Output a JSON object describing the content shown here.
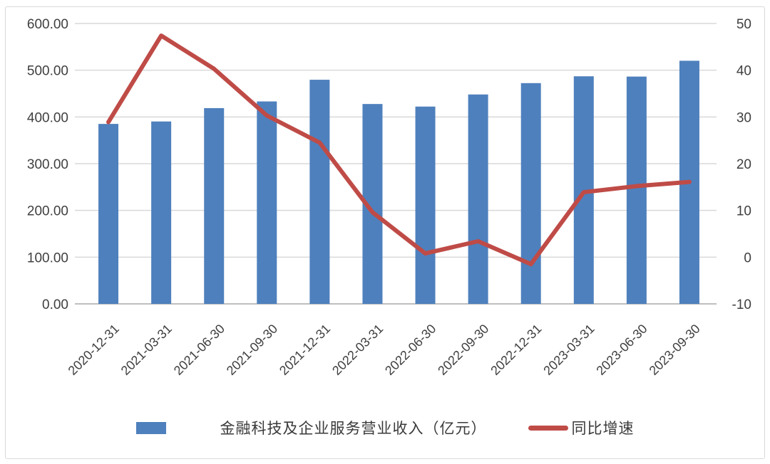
{
  "chart_data": {
    "type": "combo",
    "subtype": "bar+line",
    "title": "",
    "categories": [
      "2020-12-31",
      "2021-03-31",
      "2021-06-30",
      "2021-09-30",
      "2021-12-31",
      "2022-03-31",
      "2022-06-30",
      "2022-09-30",
      "2022-12-31",
      "2023-03-31",
      "2023-06-30",
      "2023-09-30"
    ],
    "series": [
      {
        "name": "金融科技及企业服务营业收入（亿元）",
        "type": "bar",
        "axis": "left",
        "values": [
          385.1,
          390.3,
          418.9,
          433.2,
          479.6,
          427.7,
          422.2,
          448.1,
          472.4,
          487.0,
          486.4,
          520.2
        ]
      },
      {
        "name": "同比增速",
        "type": "line",
        "axis": "right",
        "values": [
          28.9,
          47.4,
          40.3,
          30.3,
          24.5,
          9.6,
          0.8,
          3.4,
          -1.5,
          13.9,
          15.2,
          16.1
        ]
      }
    ],
    "left_axis": {
      "min": 0,
      "max": 600,
      "ticks": [
        "600.00",
        "500.00",
        "400.00",
        "300.00",
        "200.00",
        "100.00",
        "0.00"
      ]
    },
    "right_axis": {
      "min": -10,
      "max": 50,
      "ticks": [
        "50",
        "40",
        "30",
        "20",
        "10",
        "0",
        "-10"
      ]
    },
    "grid": true,
    "legend_position": "bottom",
    "x_label_rotation_deg": -45
  },
  "colors": {
    "bar": "#4e80bd",
    "line": "#bf4b47",
    "grid": "#d9d9d9",
    "axis_line": "#bfbfbf",
    "text": "#3f3f3f"
  }
}
